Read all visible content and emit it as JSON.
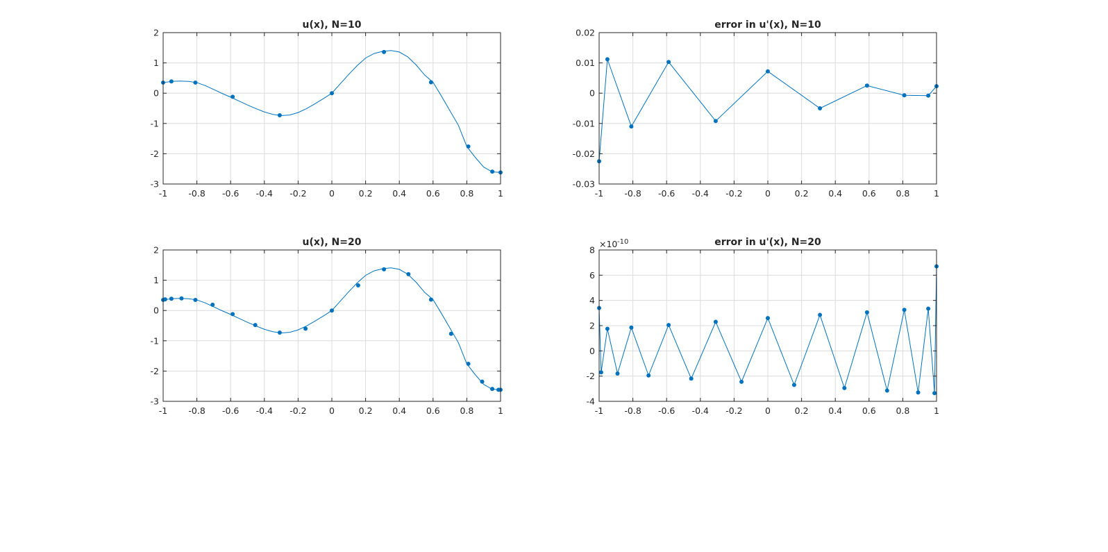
{
  "figure": {
    "background": "#ffffff"
  },
  "chart_data": [
    {
      "id": "tl",
      "type": "line",
      "title": "u(x), N=10",
      "xlabel": "",
      "ylabel": "",
      "xlim": [
        -1,
        1
      ],
      "ylim": [
        -3,
        2
      ],
      "xticks": [
        -1,
        -0.8,
        -0.6,
        -0.4,
        -0.2,
        0,
        0.2,
        0.4,
        0.6,
        0.8,
        1
      ],
      "xtick_labels": [
        "-1",
        "-0.8",
        "-0.6",
        "-0.4",
        "-0.2",
        "0",
        "0.2",
        "0.4",
        "0.6",
        "0.8",
        "1"
      ],
      "yticks": [
        -3,
        -2,
        -1,
        0,
        1,
        2
      ],
      "ytick_labels": [
        "-3",
        "-2",
        "-1",
        "0",
        "1",
        "2"
      ],
      "grid": true,
      "exponent_label": "",
      "series_color": "#0072BD",
      "series": [
        {
          "kind": "curve",
          "x": [
            -1,
            -0.95,
            -0.9,
            -0.85,
            -0.8,
            -0.75,
            -0.7,
            -0.65,
            -0.6,
            -0.55,
            -0.5,
            -0.45,
            -0.4,
            -0.35,
            -0.3,
            -0.25,
            -0.2,
            -0.15,
            -0.1,
            -0.05,
            0,
            0.05,
            0.1,
            0.15,
            0.2,
            0.25,
            0.3,
            0.35,
            0.4,
            0.45,
            0.5,
            0.55,
            0.6,
            0.65,
            0.7,
            0.75,
            0.8,
            0.85,
            0.9,
            0.95,
            1
          ],
          "y": [
            0.35,
            0.39,
            0.4,
            0.39,
            0.35,
            0.25,
            0.12,
            -0.01,
            -0.13,
            -0.26,
            -0.39,
            -0.51,
            -0.62,
            -0.7,
            -0.74,
            -0.72,
            -0.64,
            -0.51,
            -0.35,
            -0.18,
            0,
            0.31,
            0.62,
            0.91,
            1.16,
            1.31,
            1.38,
            1.41,
            1.36,
            1.2,
            0.93,
            0.6,
            0.36,
            -0.1,
            -0.58,
            -1.06,
            -1.76,
            -2.12,
            -2.44,
            -2.6,
            -2.62
          ]
        },
        {
          "kind": "markers",
          "x": [
            -1,
            -0.951,
            -0.809,
            -0.588,
            -0.309,
            0,
            0.309,
            0.588,
            0.809,
            0.951,
            1
          ],
          "y": [
            0.35,
            0.39,
            0.35,
            -0.12,
            -0.73,
            0,
            1.36,
            0.36,
            -1.76,
            -2.59,
            -2.62
          ]
        }
      ]
    },
    {
      "id": "tr",
      "type": "line",
      "title": "error in u'(x), N=10",
      "xlabel": "",
      "ylabel": "",
      "xlim": [
        -1,
        1
      ],
      "ylim": [
        -0.03,
        0.02
      ],
      "xticks": [
        -1,
        -0.8,
        -0.6,
        -0.4,
        -0.2,
        0,
        0.2,
        0.4,
        0.6,
        0.8,
        1
      ],
      "xtick_labels": [
        "-1",
        "-0.8",
        "-0.6",
        "-0.4",
        "-0.2",
        "0",
        "0.2",
        "0.4",
        "0.6",
        "0.8",
        "1"
      ],
      "yticks": [
        -0.03,
        -0.02,
        -0.01,
        0,
        0.01,
        0.02
      ],
      "ytick_labels": [
        "-0.03",
        "-0.02",
        "-0.01",
        "0",
        "0.01",
        "0.02"
      ],
      "grid": true,
      "exponent_label": "",
      "series_color": "#0072BD",
      "series": [
        {
          "kind": "line-markers",
          "x": [
            -1,
            -0.951,
            -0.809,
            -0.588,
            -0.309,
            0,
            0.309,
            0.588,
            0.809,
            0.951,
            1
          ],
          "y": [
            -0.0225,
            0.0112,
            -0.011,
            0.0103,
            -0.0092,
            0.0072,
            -0.005,
            0.0025,
            -0.0007,
            -0.0008,
            0.0023
          ]
        }
      ]
    },
    {
      "id": "bl",
      "type": "line",
      "title": "u(x), N=20",
      "xlabel": "",
      "ylabel": "",
      "xlim": [
        -1,
        1
      ],
      "ylim": [
        -3,
        2
      ],
      "xticks": [
        -1,
        -0.8,
        -0.6,
        -0.4,
        -0.2,
        0,
        0.2,
        0.4,
        0.6,
        0.8,
        1
      ],
      "xtick_labels": [
        "-1",
        "-0.8",
        "-0.6",
        "-0.4",
        "-0.2",
        "0",
        "0.2",
        "0.4",
        "0.6",
        "0.8",
        "1"
      ],
      "yticks": [
        -3,
        -2,
        -1,
        0,
        1,
        2
      ],
      "ytick_labels": [
        "-3",
        "-2",
        "-1",
        "0",
        "1",
        "2"
      ],
      "grid": true,
      "exponent_label": "",
      "series_color": "#0072BD",
      "series": [
        {
          "kind": "curve",
          "x": [
            -1,
            -0.95,
            -0.9,
            -0.85,
            -0.8,
            -0.75,
            -0.7,
            -0.65,
            -0.6,
            -0.55,
            -0.5,
            -0.45,
            -0.4,
            -0.35,
            -0.3,
            -0.25,
            -0.2,
            -0.15,
            -0.1,
            -0.05,
            0,
            0.05,
            0.1,
            0.15,
            0.2,
            0.25,
            0.3,
            0.35,
            0.4,
            0.45,
            0.5,
            0.55,
            0.6,
            0.65,
            0.7,
            0.75,
            0.8,
            0.85,
            0.9,
            0.95,
            1
          ],
          "y": [
            0.35,
            0.39,
            0.4,
            0.39,
            0.35,
            0.25,
            0.12,
            -0.01,
            -0.13,
            -0.26,
            -0.39,
            -0.51,
            -0.62,
            -0.7,
            -0.74,
            -0.72,
            -0.64,
            -0.51,
            -0.35,
            -0.18,
            0,
            0.31,
            0.62,
            0.91,
            1.16,
            1.31,
            1.38,
            1.41,
            1.36,
            1.2,
            0.93,
            0.6,
            0.36,
            -0.1,
            -0.58,
            -1.06,
            -1.76,
            -2.12,
            -2.44,
            -2.6,
            -2.62
          ]
        },
        {
          "kind": "markers",
          "x": [
            -1,
            -0.988,
            -0.951,
            -0.891,
            -0.809,
            -0.707,
            -0.588,
            -0.454,
            -0.309,
            -0.156,
            0,
            0.156,
            0.309,
            0.454,
            0.588,
            0.707,
            0.809,
            0.891,
            0.951,
            0.988,
            1
          ],
          "y": [
            0.35,
            0.37,
            0.39,
            0.4,
            0.35,
            0.19,
            -0.12,
            -0.48,
            -0.73,
            -0.6,
            0,
            0.83,
            1.36,
            1.2,
            0.36,
            -0.77,
            -1.76,
            -2.35,
            -2.59,
            -2.62,
            -2.62
          ]
        }
      ]
    },
    {
      "id": "br",
      "type": "line",
      "title": "error in u'(x), N=20",
      "xlabel": "",
      "ylabel": "",
      "xlim": [
        -1,
        1
      ],
      "ylim": [
        -4,
        8
      ],
      "xticks": [
        -1,
        -0.8,
        -0.6,
        -0.4,
        -0.2,
        0,
        0.2,
        0.4,
        0.6,
        0.8,
        1
      ],
      "xtick_labels": [
        "-1",
        "-0.8",
        "-0.6",
        "-0.4",
        "-0.2",
        "0",
        "0.2",
        "0.4",
        "0.6",
        "0.8",
        "1"
      ],
      "yticks": [
        -4,
        -2,
        0,
        2,
        4,
        6,
        8
      ],
      "ytick_labels": [
        "-4",
        "-2",
        "0",
        "2",
        "4",
        "6",
        "8"
      ],
      "grid": true,
      "exponent_label": "×10",
      "exponent_power": "-10",
      "series_color": "#0072BD",
      "series": [
        {
          "kind": "line-markers",
          "x": [
            -1,
            -0.988,
            -0.951,
            -0.891,
            -0.809,
            -0.707,
            -0.588,
            -0.454,
            -0.309,
            -0.156,
            0,
            0.156,
            0.309,
            0.454,
            0.588,
            0.707,
            0.809,
            0.891,
            0.951,
            0.988,
            1
          ],
          "y": [
            3.4,
            -1.7,
            1.75,
            -1.8,
            1.85,
            -1.95,
            2.05,
            -2.2,
            2.3,
            -2.45,
            2.6,
            -2.7,
            2.85,
            -2.95,
            3.05,
            -3.15,
            3.25,
            -3.3,
            3.35,
            -3.35,
            6.7
          ]
        }
      ]
    }
  ]
}
